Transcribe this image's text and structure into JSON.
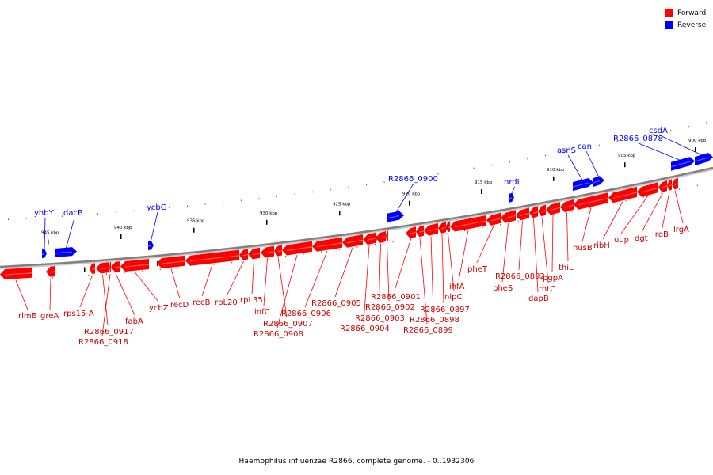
{
  "legend": {
    "items": [
      {
        "label": "Forward",
        "color": "#ff0000"
      },
      {
        "label": "Reverse",
        "color": "#0000ff"
      }
    ]
  },
  "caption": "Haemophilus influenzae R2866, complete genome. - 0..1932306",
  "colors": {
    "forward": "#ff0000",
    "reverse": "#0000ff",
    "backbone": "#808080",
    "label_line": "#000000"
  },
  "ticks": [
    {
      "label": "945 kbp"
    },
    {
      "label": "940 kbp"
    },
    {
      "label": "935 kbp"
    },
    {
      "label": "930 kbp"
    },
    {
      "label": "925 kbp"
    },
    {
      "label": "920 kbp"
    },
    {
      "label": "915 kbp"
    },
    {
      "label": "910 kbp"
    },
    {
      "label": "905 kbp"
    },
    {
      "label": "900 kbp"
    }
  ],
  "reverse_genes": [
    {
      "name": "yhbY"
    },
    {
      "name": "dacB"
    },
    {
      "name": "ycbG"
    },
    {
      "name": "R2866_0900"
    },
    {
      "name": "nrdI"
    },
    {
      "name": "asnS"
    },
    {
      "name": "can"
    },
    {
      "name": "R2866_0878"
    },
    {
      "name": "csdA"
    }
  ],
  "forward_genes": [
    {
      "name": "rlmE"
    },
    {
      "name": "greA"
    },
    {
      "name": "rps15-A"
    },
    {
      "name": "R2866_0917"
    },
    {
      "name": "R2866_0918"
    },
    {
      "name": "fabA"
    },
    {
      "name": "ycbZ"
    },
    {
      "name": "recD"
    },
    {
      "name": "recB"
    },
    {
      "name": "rpL20"
    },
    {
      "name": "rpL35"
    },
    {
      "name": "infC"
    },
    {
      "name": "R2866_0907"
    },
    {
      "name": "R2866_0908"
    },
    {
      "name": "R2866_0906"
    },
    {
      "name": "R2866_0905"
    },
    {
      "name": "R2866_0904"
    },
    {
      "name": "R2866_0903"
    },
    {
      "name": "R2866_0902"
    },
    {
      "name": "R2866_0901"
    },
    {
      "name": "R2866_0899"
    },
    {
      "name": "R2866_0898"
    },
    {
      "name": "R2866_0897"
    },
    {
      "name": "nlpC"
    },
    {
      "name": "ihfA"
    },
    {
      "name": "pheT"
    },
    {
      "name": "pheS"
    },
    {
      "name": "R2866_0892"
    },
    {
      "name": "dapB"
    },
    {
      "name": "rhtC"
    },
    {
      "name": "pgpA"
    },
    {
      "name": "thiL"
    },
    {
      "name": "nusB"
    },
    {
      "name": "ribH"
    },
    {
      "name": "uup"
    },
    {
      "name": "dgt"
    },
    {
      "name": "lrgB"
    },
    {
      "name": "lrgA"
    }
  ]
}
